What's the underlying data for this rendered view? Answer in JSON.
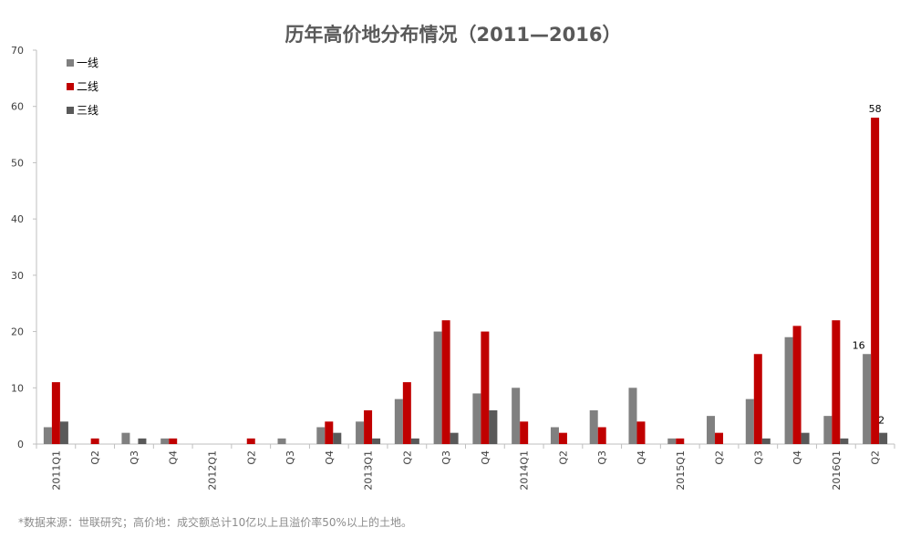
{
  "chart_data": {
    "type": "bar",
    "title": "历年高价地分布情况（2011—2016）",
    "categories": [
      "2011Q1",
      "Q2",
      "Q3",
      "Q4",
      "2012Q1",
      "Q2",
      "Q3",
      "Q4",
      "2013Q1",
      "Q2",
      "Q3",
      "Q4",
      "2014Q1",
      "Q2",
      "Q3",
      "Q4",
      "2015Q1",
      "Q2",
      "Q3",
      "Q4",
      "2016Q1",
      "Q2"
    ],
    "series": [
      {
        "name": "一线",
        "color": "#808080",
        "values": [
          3,
          0,
          2,
          1,
          0,
          0,
          1,
          3,
          4,
          8,
          20,
          9,
          10,
          3,
          6,
          10,
          1,
          5,
          8,
          19,
          5,
          16
        ]
      },
      {
        "name": "二线",
        "color": "#c00000",
        "values": [
          11,
          1,
          0,
          1,
          0,
          1,
          0,
          4,
          6,
          11,
          22,
          20,
          4,
          2,
          3,
          4,
          1,
          2,
          16,
          21,
          22,
          58
        ]
      },
      {
        "name": "三线",
        "color": "#595959",
        "values": [
          4,
          0,
          1,
          0,
          0,
          0,
          0,
          2,
          1,
          1,
          2,
          6,
          0,
          0,
          0,
          0,
          0,
          0,
          1,
          2,
          1,
          2
        ]
      }
    ],
    "ylim": [
      0,
      70
    ],
    "yticks": [
      0,
      10,
      20,
      30,
      40,
      50,
      60,
      70
    ],
    "legend_position": "top-left",
    "data_labels": [
      {
        "series": 1,
        "category": 21,
        "text": "58"
      },
      {
        "series": 0,
        "category": 21,
        "text": "16"
      },
      {
        "series": 2,
        "category": 21,
        "text": "2"
      }
    ]
  },
  "footnote": "*数据来源：世联研究；高价地：成交额总计10亿以上且溢价率50%以上的土地。"
}
